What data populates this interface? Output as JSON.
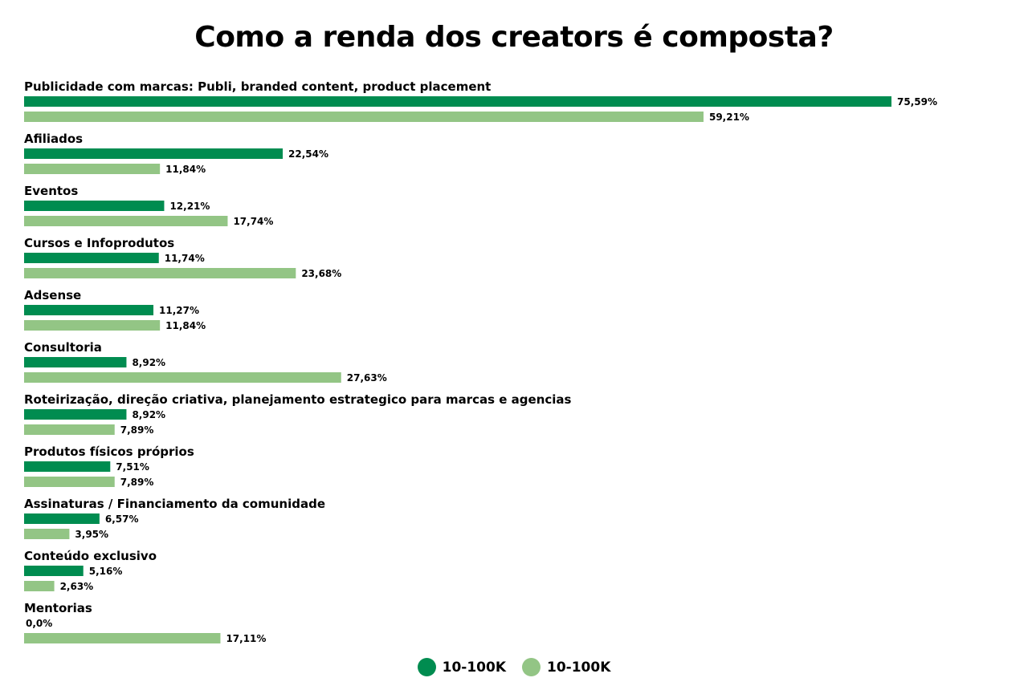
{
  "chart_data": {
    "type": "bar",
    "orientation": "horizontal",
    "title": "Como a renda dos creators é composta?",
    "categories": [
      "Publicidade com marcas: Publi, branded content, product placement",
      "Afiliados",
      "Eventos",
      "Cursos e Infoprodutos",
      "Adsense",
      "Consultoria",
      "Roteirização, direção criativa, planejamento estrategico para marcas e agencias",
      "Produtos físicos próprios",
      "Assinaturas / Financiamento da comunidade",
      "Conteúdo exclusivo",
      "Mentorias"
    ],
    "series": [
      {
        "name": "10-100K",
        "color": "#008c50",
        "values": [
          75.59,
          22.54,
          12.21,
          11.74,
          11.27,
          8.92,
          8.92,
          7.51,
          6.57,
          5.16,
          0.0
        ],
        "labels": [
          "75,59%",
          "22,54%",
          "12,21%",
          "11,74%",
          "11,27%",
          "8,92%",
          "8,92%",
          "7,51%",
          "6,57%",
          "5,16%",
          "0,0%"
        ]
      },
      {
        "name": "10-100K",
        "color": "#93c585",
        "values": [
          59.21,
          11.84,
          17.74,
          23.68,
          11.84,
          27.63,
          7.89,
          7.89,
          3.95,
          2.63,
          17.11
        ],
        "labels": [
          "59,21%",
          "11,84%",
          "17,74%",
          "23,68%",
          "11,84%",
          "27,63%",
          "7,89%",
          "7,89%",
          "3,95%",
          "2,63%",
          "17,11%"
        ]
      }
    ],
    "xlim": [
      0,
      100
    ],
    "grid": false,
    "legend_position": "bottom-center"
  }
}
